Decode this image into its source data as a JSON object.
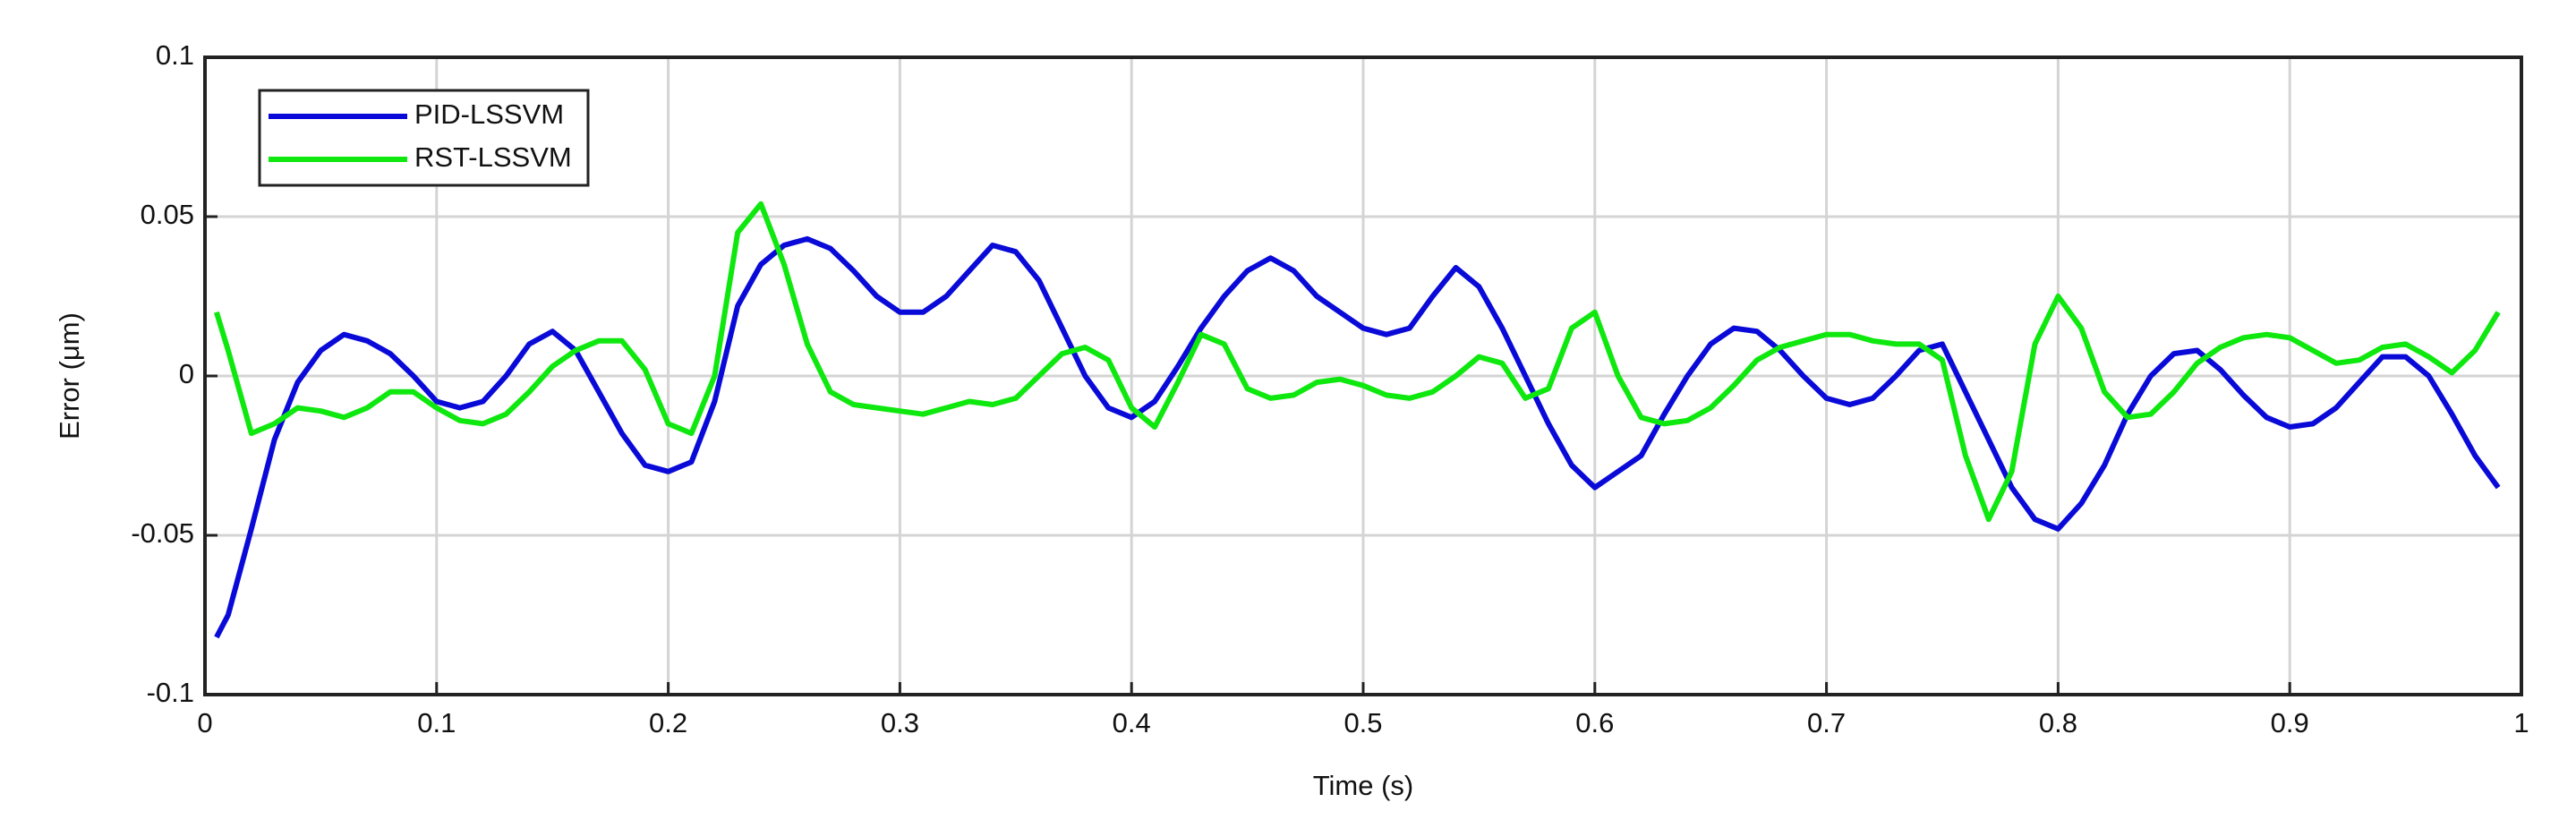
{
  "chart_data": {
    "type": "line",
    "xlabel": "Time (s)",
    "ylabel": "Error (μm)",
    "x": [
      0.005,
      0.01,
      0.02,
      0.03,
      0.04,
      0.05,
      0.06,
      0.07,
      0.08,
      0.09,
      0.1,
      0.11,
      0.12,
      0.13,
      0.14,
      0.15,
      0.16,
      0.17,
      0.18,
      0.19,
      0.2,
      0.21,
      0.22,
      0.23,
      0.24,
      0.25,
      0.26,
      0.27,
      0.28,
      0.29,
      0.3,
      0.31,
      0.32,
      0.33,
      0.34,
      0.35,
      0.36,
      0.37,
      0.38,
      0.39,
      0.4,
      0.41,
      0.42,
      0.43,
      0.44,
      0.45,
      0.46,
      0.47,
      0.48,
      0.49,
      0.5,
      0.51,
      0.52,
      0.53,
      0.54,
      0.55,
      0.56,
      0.57,
      0.58,
      0.59,
      0.6,
      0.61,
      0.62,
      0.63,
      0.64,
      0.65,
      0.66,
      0.67,
      0.68,
      0.69,
      0.7,
      0.71,
      0.72,
      0.73,
      0.74,
      0.75,
      0.76,
      0.77,
      0.78,
      0.79,
      0.8,
      0.81,
      0.82,
      0.83,
      0.84,
      0.85,
      0.86,
      0.87,
      0.88,
      0.89,
      0.9,
      0.91,
      0.92,
      0.93,
      0.94,
      0.95,
      0.96,
      0.97,
      0.98,
      0.99
    ],
    "series": [
      {
        "name": "PID-LSSVM",
        "color": "#0a0ad8",
        "values": [
          -0.082,
          -0.075,
          -0.048,
          -0.02,
          -0.002,
          0.008,
          0.013,
          0.011,
          0.007,
          0.0,
          -0.008,
          -0.01,
          -0.008,
          0.0,
          0.01,
          0.014,
          0.008,
          -0.005,
          -0.018,
          -0.028,
          -0.03,
          -0.027,
          -0.008,
          0.022,
          0.035,
          0.041,
          0.043,
          0.04,
          0.033,
          0.025,
          0.02,
          0.02,
          0.025,
          0.033,
          0.041,
          0.039,
          0.03,
          0.015,
          0.0,
          -0.01,
          -0.013,
          -0.008,
          0.003,
          0.015,
          0.025,
          0.033,
          0.037,
          0.033,
          0.025,
          0.02,
          0.015,
          0.013,
          0.015,
          0.025,
          0.034,
          0.028,
          0.015,
          0.0,
          -0.015,
          -0.028,
          -0.035,
          -0.03,
          -0.025,
          -0.012,
          0.0,
          0.01,
          0.015,
          0.014,
          0.008,
          0.0,
          -0.007,
          -0.009,
          -0.007,
          0.0,
          0.008,
          0.01,
          -0.005,
          -0.02,
          -0.035,
          -0.045,
          -0.048,
          -0.04,
          -0.028,
          -0.012,
          0.0,
          0.007,
          0.008,
          0.002,
          -0.006,
          -0.013,
          -0.016,
          -0.015,
          -0.01,
          -0.002,
          0.006,
          0.006,
          0.0,
          -0.012,
          -0.025,
          -0.035
        ]
      },
      {
        "name": "RST-LSSVM",
        "color": "#0ee80e",
        "values": [
          0.02,
          0.008,
          -0.018,
          -0.015,
          -0.01,
          -0.011,
          -0.013,
          -0.01,
          -0.005,
          -0.005,
          -0.01,
          -0.014,
          -0.015,
          -0.012,
          -0.005,
          0.003,
          0.008,
          0.011,
          0.011,
          0.002,
          -0.015,
          -0.018,
          0.0,
          0.045,
          0.054,
          0.035,
          0.01,
          -0.005,
          -0.009,
          -0.01,
          -0.011,
          -0.012,
          -0.01,
          -0.008,
          -0.009,
          -0.007,
          0.0,
          0.007,
          0.009,
          0.005,
          -0.01,
          -0.016,
          -0.002,
          0.013,
          0.01,
          -0.004,
          -0.007,
          -0.006,
          -0.002,
          -0.001,
          -0.003,
          -0.006,
          -0.007,
          -0.005,
          0.0,
          0.006,
          0.004,
          -0.007,
          -0.004,
          0.015,
          0.02,
          0.0,
          -0.013,
          -0.015,
          -0.014,
          -0.01,
          -0.003,
          0.005,
          0.009,
          0.011,
          0.013,
          0.013,
          0.011,
          0.01,
          0.01,
          0.005,
          -0.025,
          -0.045,
          -0.03,
          0.01,
          0.025,
          0.015,
          -0.005,
          -0.013,
          -0.012,
          -0.005,
          0.004,
          0.009,
          0.012,
          0.013,
          0.012,
          0.008,
          0.004,
          0.005,
          0.009,
          0.01,
          0.006,
          0.001,
          0.008,
          0.02
        ]
      }
    ],
    "xlim": [
      0,
      1
    ],
    "xticks": [
      0,
      0.1,
      0.2,
      0.3,
      0.4,
      0.5,
      0.6,
      0.7,
      0.8,
      0.9,
      1
    ],
    "ylim": [
      -0.1,
      0.1
    ],
    "yticks": [
      -0.1,
      -0.05,
      0,
      0.05,
      0.1
    ],
    "grid": true,
    "legend": "upper left"
  }
}
